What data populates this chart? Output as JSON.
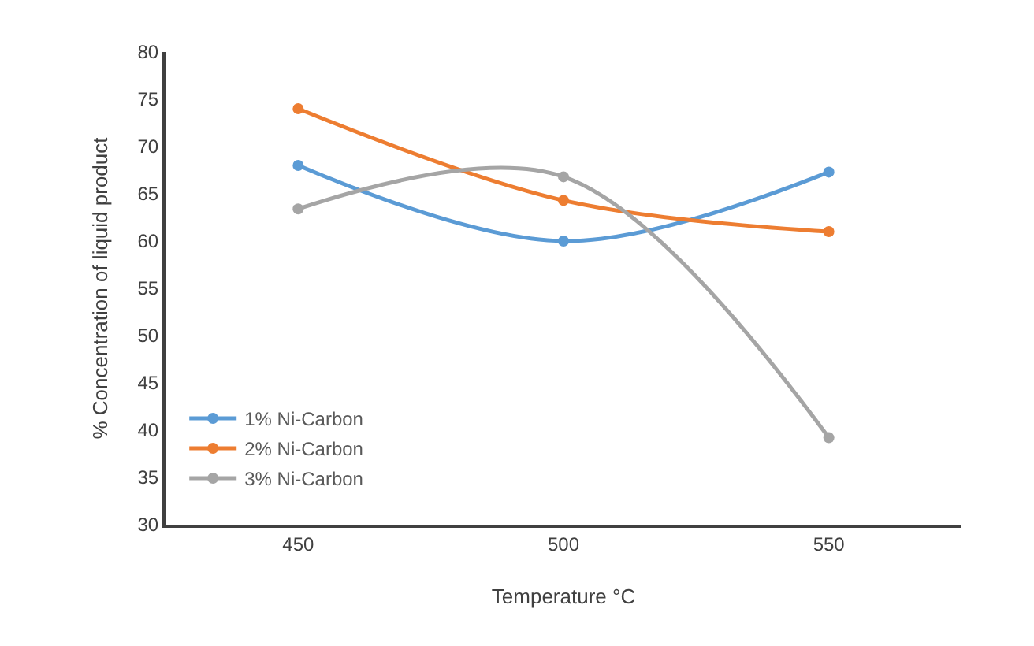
{
  "chart_data": {
    "type": "line",
    "xlabel": "Temperature °C",
    "ylabel": "% Concentration of liquid product",
    "x": [
      450,
      500,
      550
    ],
    "xlim": [
      425,
      575
    ],
    "xticks": [
      450,
      500,
      550
    ],
    "ylim": [
      30,
      80
    ],
    "yticks": [
      30,
      35,
      40,
      45,
      50,
      55,
      60,
      65,
      70,
      75,
      80
    ],
    "series": [
      {
        "name": "1% Ni-Carbon",
        "color": "#5b9bd5",
        "values": [
          68,
          60,
          67.3
        ]
      },
      {
        "name": "2% Ni-Carbon",
        "color": "#ed7d31",
        "values": [
          74,
          64.3,
          61
        ]
      },
      {
        "name": "3% Ni-Carbon",
        "color": "#a5a5a5",
        "values": [
          63.4,
          66.8,
          39.2
        ]
      }
    ],
    "grid": false,
    "legend": "bottom left",
    "marker": "circle",
    "line_style": "solid"
  }
}
